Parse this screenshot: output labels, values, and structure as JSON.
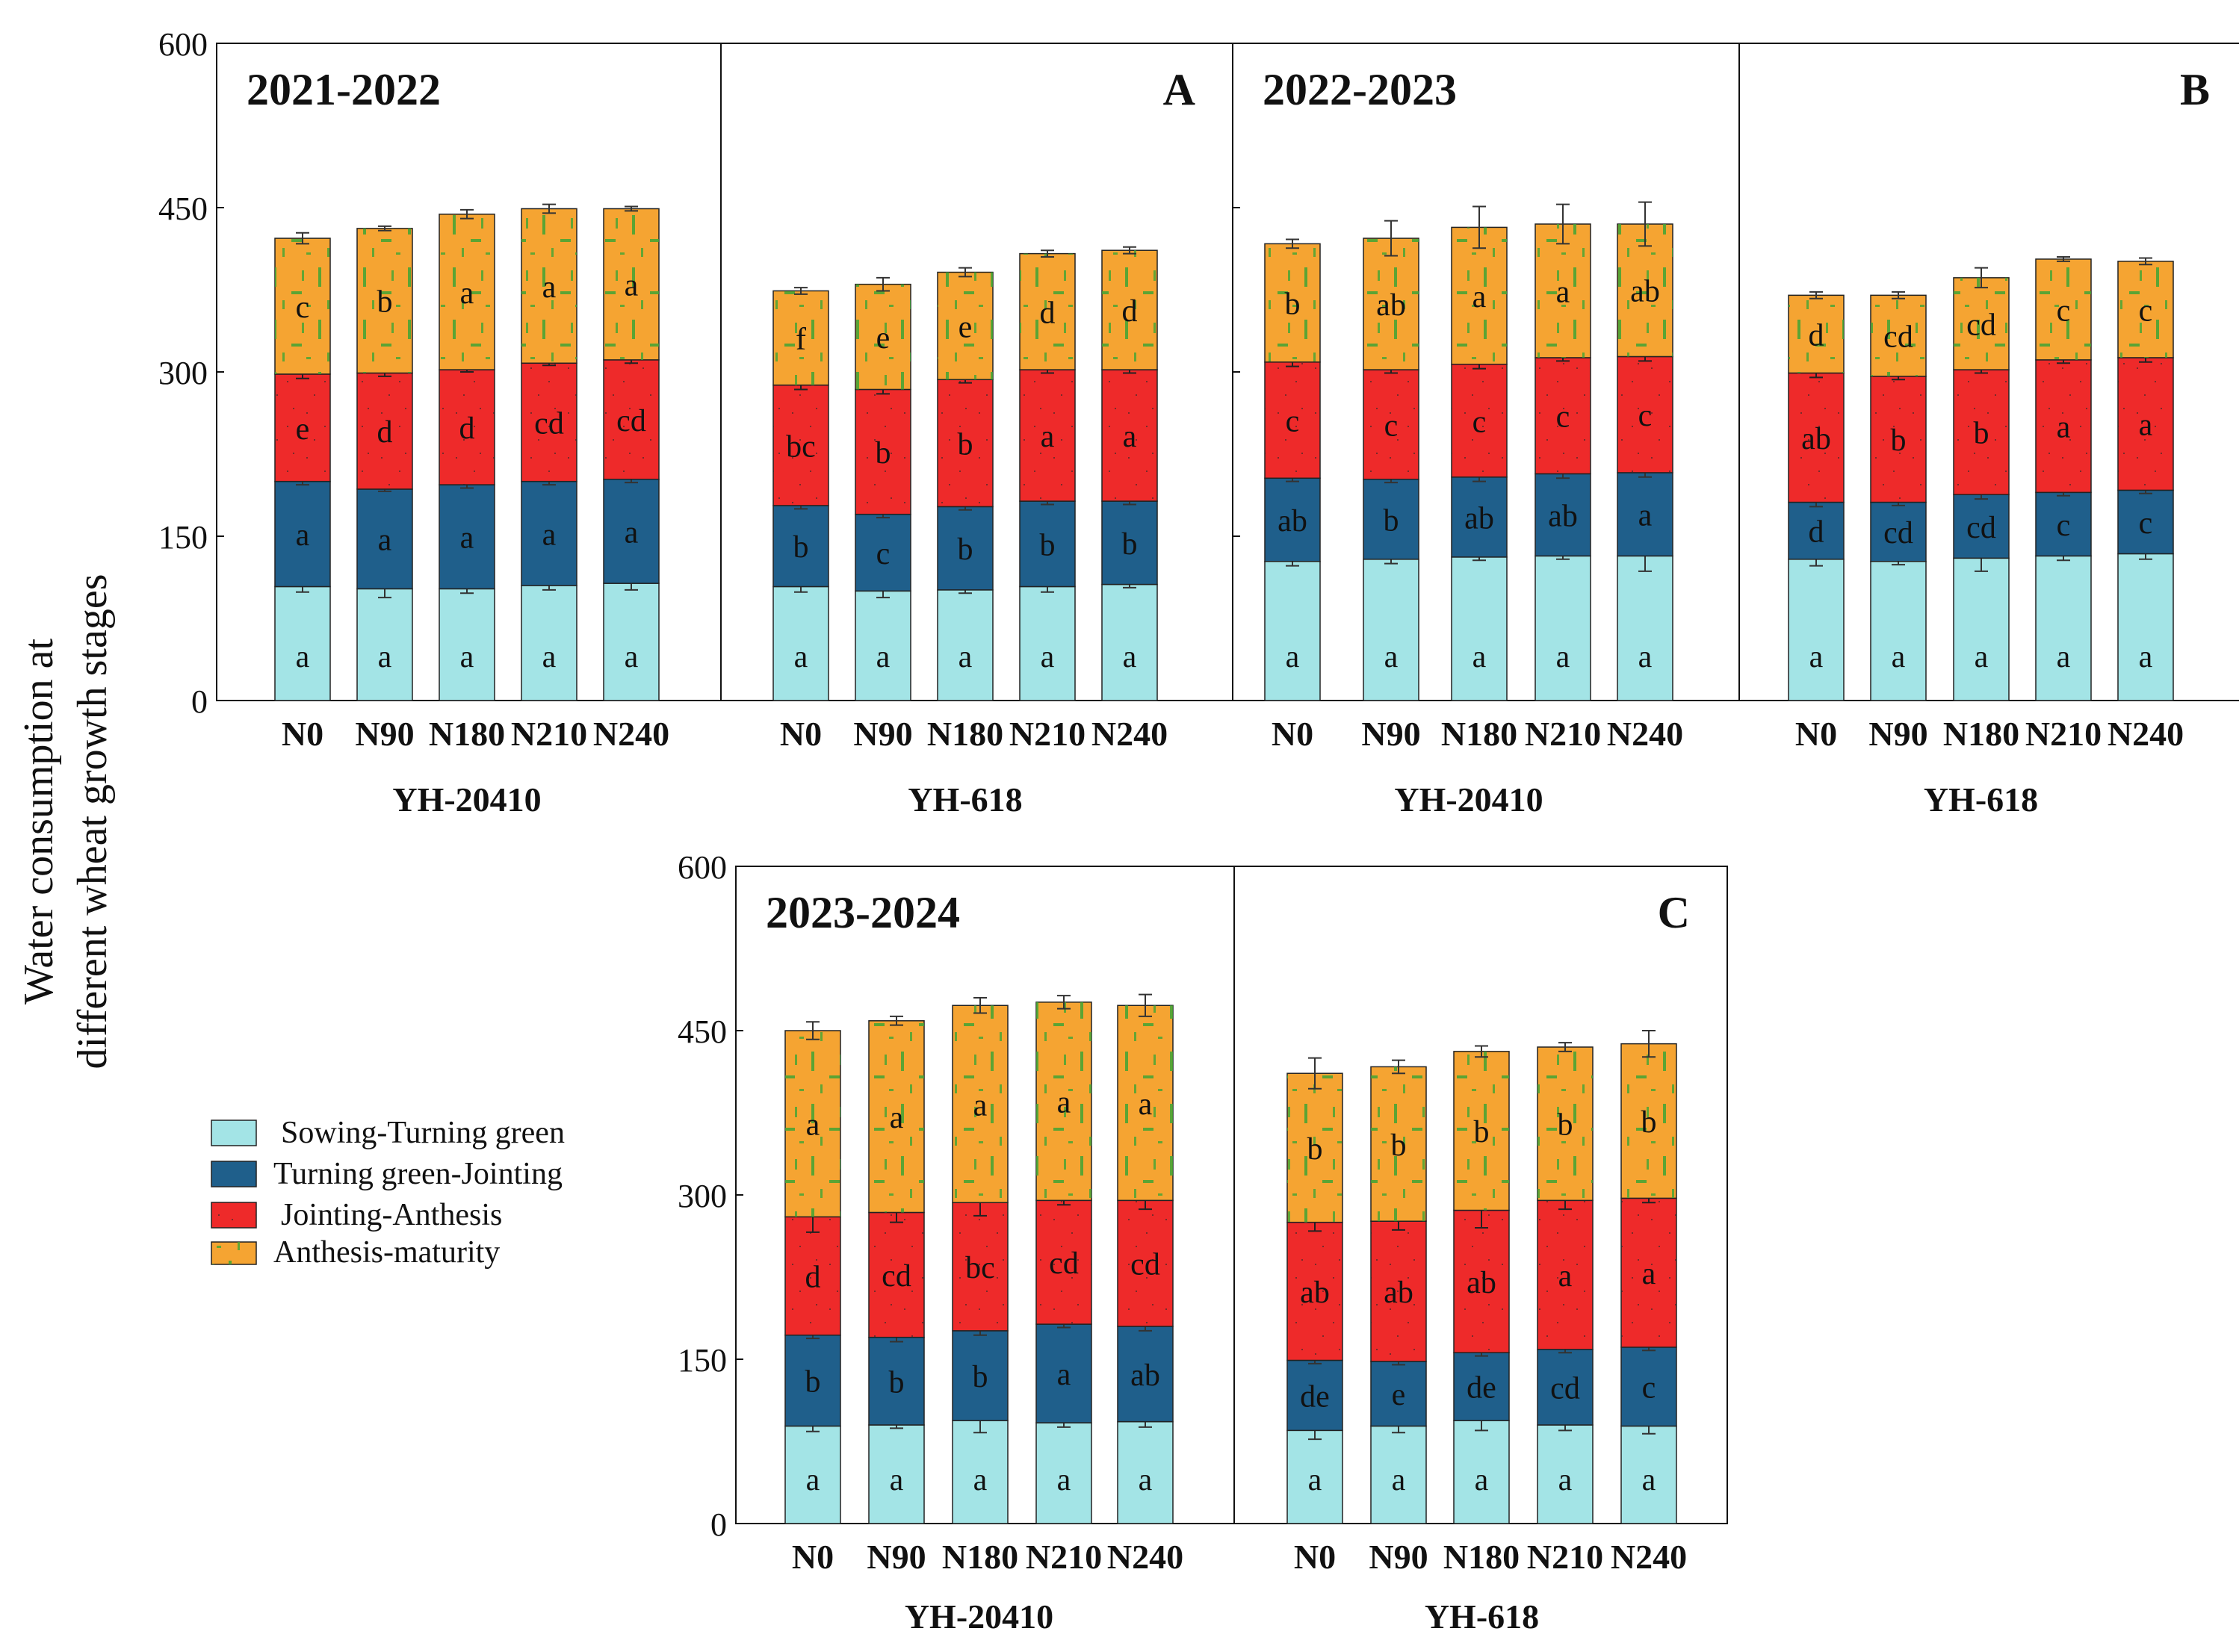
{
  "figure": {
    "ylabel_lines": [
      "Water consumption at",
      "different wheat growth stages"
    ],
    "legend": [
      {
        "label": "Sowing-Turning green",
        "color": "#a3e4e6"
      },
      {
        "label": "Turning green-Jointing",
        "color": "#1f5f8b"
      },
      {
        "label": "Jointing-Anthesis",
        "color": "#ee2a2a"
      },
      {
        "label": "Anthesis-maturity",
        "color": "#f5a432"
      }
    ],
    "speckle_color": "#3fa535"
  },
  "chart_data": [
    {
      "type": "bar",
      "stacked": true,
      "panel_letter": "A",
      "season": "2021-2022",
      "ylim": [
        0,
        600
      ],
      "yticks": [
        0,
        150,
        300,
        450,
        600
      ],
      "series_names": [
        "Sowing-Turning green",
        "Turning green-Jointing",
        "Jointing-Anthesis",
        "Anthesis-maturity"
      ],
      "groups": [
        {
          "cultivar": "YH-20410",
          "categories": [
            "N0",
            "N90",
            "N180",
            "N210",
            "N240"
          ],
          "values": [
            [
              104,
              96,
              98,
              124
            ],
            [
              102,
              91,
              106,
              132
            ],
            [
              102,
              95,
              105,
              142
            ],
            [
              105,
              95,
              108,
              141
            ],
            [
              107,
              95,
              109,
              138
            ]
          ],
          "errors": [
            [
              5,
              3,
              4,
              5
            ],
            [
              8,
              2,
              3,
              2
            ],
            [
              4,
              3,
              2,
              4
            ],
            [
              4,
              3,
              2,
              4
            ],
            [
              6,
              3,
              3,
              2
            ]
          ],
          "letters": [
            [
              "a",
              "a",
              "e",
              "c"
            ],
            [
              "a",
              "a",
              "d",
              "b"
            ],
            [
              "a",
              "a",
              "d",
              "a"
            ],
            [
              "a",
              "a",
              "cd",
              "a"
            ],
            [
              "a",
              "a",
              "cd",
              "a"
            ]
          ]
        },
        {
          "cultivar": "YH-618",
          "categories": [
            "N0",
            "N90",
            "N180",
            "N210",
            "N240"
          ],
          "values": [
            [
              104,
              74,
              110,
              86
            ],
            [
              100,
              70,
              114,
              96
            ],
            [
              101,
              76,
              116,
              98
            ],
            [
              104,
              78,
              120,
              106
            ],
            [
              106,
              76,
              120,
              109
            ]
          ],
          "errors": [
            [
              5,
              3,
              4,
              3
            ],
            [
              6,
              3,
              4,
              6
            ],
            [
              3,
              3,
              3,
              4
            ],
            [
              5,
              3,
              3,
              3
            ],
            [
              3,
              3,
              3,
              3
            ]
          ],
          "letters": [
            [
              "a",
              "b",
              "bc",
              "f"
            ],
            [
              "a",
              "c",
              "b",
              "e"
            ],
            [
              "a",
              "b",
              "b",
              "e"
            ],
            [
              "a",
              "b",
              "a",
              "d"
            ],
            [
              "a",
              "b",
              "a",
              "d"
            ]
          ]
        }
      ]
    },
    {
      "type": "bar",
      "stacked": true,
      "panel_letter": "B",
      "season": "2022-2023",
      "ylim": [
        0,
        600
      ],
      "yticks": [
        0,
        150,
        300,
        450,
        600
      ],
      "series_names": [
        "Sowing-Turning green",
        "Turning green-Jointing",
        "Jointing-Anthesis",
        "Anthesis-maturity"
      ],
      "groups": [
        {
          "cultivar": "YH-20410",
          "categories": [
            "N0",
            "N90",
            "N180",
            "N210",
            "N240"
          ],
          "values": [
            [
              127,
              76,
              106,
              108
            ],
            [
              129,
              73,
              100,
              120
            ],
            [
              131,
              73,
              103,
              125
            ],
            [
              132,
              75,
              106,
              122
            ],
            [
              132,
              76,
              106,
              121
            ]
          ],
          "errors": [
            [
              4,
              3,
              4,
              4
            ],
            [
              4,
              3,
              3,
              16
            ],
            [
              3,
              4,
              4,
              19
            ],
            [
              3,
              4,
              3,
              18
            ],
            [
              14,
              4,
              4,
              20
            ]
          ],
          "letters": [
            [
              "a",
              "ab",
              "c",
              "b"
            ],
            [
              "a",
              "b",
              "c",
              "ab"
            ],
            [
              "a",
              "ab",
              "c",
              "a"
            ],
            [
              "a",
              "ab",
              "c",
              "a"
            ],
            [
              "a",
              "a",
              "c",
              "ab"
            ]
          ]
        },
        {
          "cultivar": "YH-618",
          "categories": [
            "N0",
            "N90",
            "N180",
            "N210",
            "N240"
          ],
          "values": [
            [
              129,
              52,
              118,
              71
            ],
            [
              127,
              54,
              115,
              74
            ],
            [
              130,
              58,
              114,
              84
            ],
            [
              132,
              58,
              121,
              92
            ],
            [
              134,
              58,
              121,
              88
            ]
          ],
          "errors": [
            [
              6,
              4,
              4,
              3
            ],
            [
              3,
              3,
              3,
              3
            ],
            [
              12,
              4,
              3,
              9
            ],
            [
              4,
              3,
              3,
              2
            ],
            [
              5,
              3,
              4,
              3
            ]
          ],
          "letters": [
            [
              "a",
              "d",
              "ab",
              "d"
            ],
            [
              "a",
              "cd",
              "b",
              "cd"
            ],
            [
              "a",
              "cd",
              "b",
              "cd"
            ],
            [
              "a",
              "c",
              "a",
              "c"
            ],
            [
              "a",
              "c",
              "a",
              "c"
            ]
          ]
        }
      ]
    },
    {
      "type": "bar",
      "stacked": true,
      "panel_letter": "C",
      "season": "2023-2024",
      "ylim": [
        0,
        600
      ],
      "yticks": [
        0,
        150,
        300,
        450,
        600
      ],
      "series_names": [
        "Sowing-Turning green",
        "Turning green-Jointing",
        "Jointing-Anthesis",
        "Anthesis-maturity"
      ],
      "groups": [
        {
          "cultivar": "YH-20410",
          "categories": [
            "N0",
            "N90",
            "N180",
            "N210",
            "N240"
          ],
          "values": [
            [
              89,
              83,
              108,
              170
            ],
            [
              90,
              80,
              114,
              175
            ],
            [
              94,
              82,
              117,
              180
            ],
            [
              92,
              90,
              113,
              181
            ],
            [
              93,
              87,
              115,
              178
            ]
          ],
          "errors": [
            [
              5,
              3,
              14,
              8
            ],
            [
              3,
              4,
              9,
              4
            ],
            [
              11,
              4,
              12,
              7
            ],
            [
              4,
              3,
              4,
              6
            ],
            [
              5,
              4,
              8,
              10
            ]
          ],
          "letters": [
            [
              "a",
              "b",
              "d",
              "a"
            ],
            [
              "a",
              "b",
              "cd",
              "a"
            ],
            [
              "a",
              "b",
              "bc",
              "a"
            ],
            [
              "a",
              "a",
              "cd",
              "a"
            ],
            [
              "a",
              "ab",
              "cd",
              "a"
            ]
          ]
        },
        {
          "cultivar": "YH-618",
          "categories": [
            "N0",
            "N90",
            "N180",
            "N210",
            "N240"
          ],
          "values": [
            [
              85,
              64,
              126,
              136
            ],
            [
              89,
              59,
              128,
              141
            ],
            [
              94,
              62,
              130,
              145
            ],
            [
              90,
              69,
              136,
              140
            ],
            [
              89,
              72,
              136,
              141
            ]
          ],
          "errors": [
            [
              8,
              3,
              8,
              14
            ],
            [
              6,
              3,
              8,
              6
            ],
            [
              9,
              3,
              16,
              5
            ],
            [
              5,
              3,
              8,
              4
            ],
            [
              7,
              3,
              4,
              12
            ]
          ],
          "letters": [
            [
              "a",
              "de",
              "ab",
              "b"
            ],
            [
              "a",
              "e",
              "ab",
              "b"
            ],
            [
              "a",
              "de",
              "ab",
              "b"
            ],
            [
              "a",
              "cd",
              "a",
              "b"
            ],
            [
              "a",
              "c",
              "a",
              "b"
            ]
          ]
        }
      ]
    }
  ]
}
